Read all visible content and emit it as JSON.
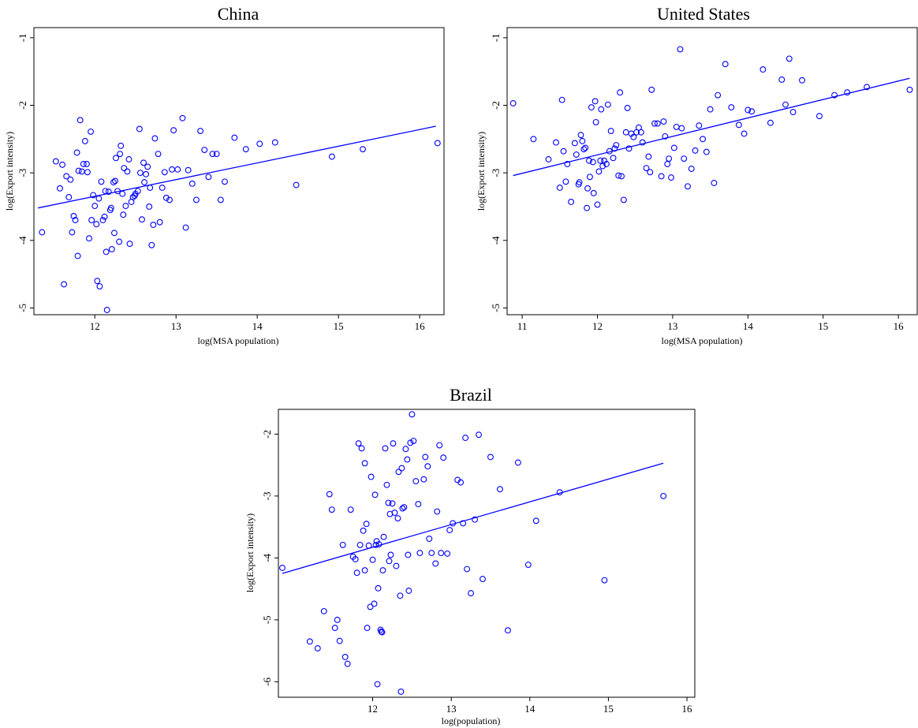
{
  "chart_data": [
    {
      "type": "scatter",
      "title": "China",
      "xlabel": "log(MSA population)",
      "ylabel": "log(Export intensity)",
      "xlim": [
        11.25,
        16.3
      ],
      "ylim": [
        -5.1,
        -0.85
      ],
      "xticks": [
        12,
        13,
        14,
        15,
        16
      ],
      "yticks": [
        -1,
        -2,
        -3,
        -4,
        -5
      ],
      "color": "#0000ff",
      "fit_line": [
        [
          11.3,
          -3.52
        ],
        [
          16.2,
          -2.31
        ]
      ],
      "points": [
        [
          11.35,
          -3.88
        ],
        [
          11.52,
          -2.83
        ],
        [
          11.57,
          -3.23
        ],
        [
          11.6,
          -2.88
        ],
        [
          11.62,
          -4.65
        ],
        [
          11.65,
          -3.05
        ],
        [
          11.68,
          -3.36
        ],
        [
          11.7,
          -3.1
        ],
        [
          11.72,
          -3.88
        ],
        [
          11.74,
          -3.64
        ],
        [
          11.76,
          -3.7
        ],
        [
          11.78,
          -2.7
        ],
        [
          11.79,
          -4.23
        ],
        [
          11.8,
          -2.97
        ],
        [
          11.82,
          -2.22
        ],
        [
          11.84,
          -2.98
        ],
        [
          11.86,
          -2.87
        ],
        [
          11.88,
          -2.53
        ],
        [
          11.9,
          -2.87
        ],
        [
          11.91,
          -2.99
        ],
        [
          11.93,
          -3.97
        ],
        [
          11.95,
          -2.39
        ],
        [
          11.96,
          -3.7
        ],
        [
          11.98,
          -3.33
        ],
        [
          12.0,
          -3.49
        ],
        [
          12.02,
          -3.76
        ],
        [
          12.03,
          -4.6
        ],
        [
          12.05,
          -3.38
        ],
        [
          12.06,
          -4.68
        ],
        [
          12.08,
          -3.13
        ],
        [
          12.1,
          -3.7
        ],
        [
          12.12,
          -3.65
        ],
        [
          12.13,
          -3.27
        ],
        [
          12.14,
          -4.17
        ],
        [
          12.15,
          -5.03
        ],
        [
          12.17,
          -3.28
        ],
        [
          12.19,
          -3.55
        ],
        [
          12.2,
          -3.52
        ],
        [
          12.21,
          -4.13
        ],
        [
          12.23,
          -3.14
        ],
        [
          12.24,
          -3.89
        ],
        [
          12.25,
          -3.12
        ],
        [
          12.26,
          -2.78
        ],
        [
          12.28,
          -3.27
        ],
        [
          12.3,
          -4.02
        ],
        [
          12.31,
          -2.72
        ],
        [
          12.32,
          -2.6
        ],
        [
          12.34,
          -3.31
        ],
        [
          12.35,
          -3.62
        ],
        [
          12.36,
          -2.93
        ],
        [
          12.38,
          -3.49
        ],
        [
          12.4,
          -2.98
        ],
        [
          12.42,
          -2.8
        ],
        [
          12.43,
          -4.05
        ],
        [
          12.45,
          -3.43
        ],
        [
          12.47,
          -3.36
        ],
        [
          12.49,
          -3.34
        ],
        [
          12.5,
          -3.31
        ],
        [
          12.53,
          -3.27
        ],
        [
          12.55,
          -2.35
        ],
        [
          12.56,
          -3.0
        ],
        [
          12.58,
          -3.69
        ],
        [
          12.6,
          -2.85
        ],
        [
          12.61,
          -3.14
        ],
        [
          12.63,
          -3.02
        ],
        [
          12.65,
          -2.91
        ],
        [
          12.67,
          -3.5
        ],
        [
          12.68,
          -3.22
        ],
        [
          12.7,
          -4.07
        ],
        [
          12.72,
          -3.77
        ],
        [
          12.74,
          -2.49
        ],
        [
          12.78,
          -2.72
        ],
        [
          12.8,
          -3.73
        ],
        [
          12.83,
          -3.22
        ],
        [
          12.86,
          -2.99
        ],
        [
          12.88,
          -3.37
        ],
        [
          12.92,
          -3.4
        ],
        [
          12.95,
          -2.95
        ],
        [
          12.97,
          -2.37
        ],
        [
          13.02,
          -2.95
        ],
        [
          13.08,
          -2.19
        ],
        [
          13.12,
          -3.81
        ],
        [
          13.15,
          -2.96
        ],
        [
          13.2,
          -3.16
        ],
        [
          13.25,
          -3.4
        ],
        [
          13.3,
          -2.38
        ],
        [
          13.35,
          -2.66
        ],
        [
          13.4,
          -3.06
        ],
        [
          13.45,
          -2.72
        ],
        [
          13.5,
          -2.72
        ],
        [
          13.55,
          -3.4
        ],
        [
          13.6,
          -3.13
        ],
        [
          13.72,
          -2.48
        ],
        [
          13.86,
          -2.65
        ],
        [
          14.03,
          -2.57
        ],
        [
          14.22,
          -2.55
        ],
        [
          14.48,
          -3.18
        ],
        [
          14.92,
          -2.76
        ],
        [
          15.3,
          -2.65
        ],
        [
          16.22,
          -2.56
        ]
      ]
    },
    {
      "type": "scatter",
      "title": "United States",
      "xlabel": "log(MSA population)",
      "ylabel": "log(Export intensity)",
      "xlim": [
        10.8,
        16.25
      ],
      "ylim": [
        -5.1,
        -0.85
      ],
      "xticks": [
        11,
        12,
        13,
        14,
        15,
        16
      ],
      "yticks": [
        -1,
        -2,
        -3,
        -4,
        -5
      ],
      "color": "#0000ff",
      "fit_line": [
        [
          10.88,
          -3.04
        ],
        [
          16.15,
          -1.6
        ]
      ],
      "points": [
        [
          10.88,
          -1.97
        ],
        [
          11.15,
          -2.5
        ],
        [
          11.35,
          -2.8
        ],
        [
          11.45,
          -2.55
        ],
        [
          11.5,
          -3.22
        ],
        [
          11.53,
          -1.92
        ],
        [
          11.55,
          -2.68
        ],
        [
          11.58,
          -3.13
        ],
        [
          11.6,
          -2.87
        ],
        [
          11.65,
          -3.43
        ],
        [
          11.7,
          -2.56
        ],
        [
          11.72,
          -2.73
        ],
        [
          11.75,
          -3.17
        ],
        [
          11.76,
          -3.14
        ],
        [
          11.78,
          -2.44
        ],
        [
          11.8,
          -2.53
        ],
        [
          11.82,
          -2.65
        ],
        [
          11.84,
          -2.63
        ],
        [
          11.86,
          -3.52
        ],
        [
          11.87,
          -3.23
        ],
        [
          11.89,
          -2.82
        ],
        [
          11.9,
          -3.06
        ],
        [
          11.92,
          -2.03
        ],
        [
          11.94,
          -2.84
        ],
        [
          11.95,
          -3.3
        ],
        [
          11.97,
          -1.94
        ],
        [
          11.98,
          -2.25
        ],
        [
          12.0,
          -3.47
        ],
        [
          12.02,
          -2.98
        ],
        [
          12.04,
          -2.82
        ],
        [
          12.05,
          -2.06
        ],
        [
          12.07,
          -2.9
        ],
        [
          12.09,
          -2.82
        ],
        [
          12.12,
          -2.87
        ],
        [
          12.14,
          -1.99
        ],
        [
          12.16,
          -2.68
        ],
        [
          12.18,
          -2.38
        ],
        [
          12.21,
          -2.78
        ],
        [
          12.23,
          -2.64
        ],
        [
          12.25,
          -2.59
        ],
        [
          12.28,
          -3.04
        ],
        [
          12.3,
          -1.81
        ],
        [
          12.32,
          -3.05
        ],
        [
          12.35,
          -3.4
        ],
        [
          12.38,
          -2.4
        ],
        [
          12.4,
          -2.04
        ],
        [
          12.42,
          -2.64
        ],
        [
          12.45,
          -2.42
        ],
        [
          12.48,
          -2.47
        ],
        [
          12.52,
          -2.4
        ],
        [
          12.55,
          -2.33
        ],
        [
          12.58,
          -2.4
        ],
        [
          12.6,
          -2.55
        ],
        [
          12.65,
          -2.93
        ],
        [
          12.68,
          -2.76
        ],
        [
          12.7,
          -2.99
        ],
        [
          12.72,
          -1.77
        ],
        [
          12.76,
          -2.27
        ],
        [
          12.8,
          -2.27
        ],
        [
          12.85,
          -3.05
        ],
        [
          12.88,
          -2.24
        ],
        [
          12.9,
          -2.46
        ],
        [
          12.93,
          -2.87
        ],
        [
          12.95,
          -2.79
        ],
        [
          12.98,
          -3.07
        ],
        [
          13.02,
          -2.63
        ],
        [
          13.05,
          -2.32
        ],
        [
          13.1,
          -1.17
        ],
        [
          13.12,
          -2.34
        ],
        [
          13.15,
          -2.79
        ],
        [
          13.2,
          -3.2
        ],
        [
          13.25,
          -2.94
        ],
        [
          13.3,
          -2.67
        ],
        [
          13.35,
          -2.3
        ],
        [
          13.4,
          -2.5
        ],
        [
          13.45,
          -2.69
        ],
        [
          13.5,
          -2.06
        ],
        [
          13.55,
          -3.15
        ],
        [
          13.6,
          -1.85
        ],
        [
          13.7,
          -1.39
        ],
        [
          13.78,
          -2.03
        ],
        [
          13.88,
          -2.29
        ],
        [
          13.95,
          -2.42
        ],
        [
          14.0,
          -2.07
        ],
        [
          14.05,
          -2.09
        ],
        [
          14.2,
          -1.47
        ],
        [
          14.3,
          -2.26
        ],
        [
          14.45,
          -1.62
        ],
        [
          14.5,
          -1.99
        ],
        [
          14.55,
          -1.31
        ],
        [
          14.6,
          -2.1
        ],
        [
          14.72,
          -1.63
        ],
        [
          14.95,
          -2.16
        ],
        [
          15.15,
          -1.85
        ],
        [
          15.32,
          -1.81
        ],
        [
          15.58,
          -1.73
        ],
        [
          16.15,
          -1.77
        ]
      ]
    },
    {
      "type": "scatter",
      "title": "Brazil",
      "xlabel": "log(population)",
      "ylabel": "log(Export intensity)",
      "xlim": [
        10.8,
        16.1
      ],
      "ylim": [
        -6.25,
        -1.6
      ],
      "xticks": [
        12,
        13,
        14,
        15,
        16
      ],
      "yticks": [
        -2,
        -3,
        -4,
        -5,
        -6
      ],
      "color": "#0000ff",
      "fit_line": [
        [
          10.85,
          -4.25
        ],
        [
          15.7,
          -2.47
        ]
      ],
      "points": [
        [
          10.85,
          -4.16
        ],
        [
          11.2,
          -5.35
        ],
        [
          11.3,
          -5.46
        ],
        [
          11.38,
          -4.86
        ],
        [
          11.45,
          -2.97
        ],
        [
          11.48,
          -3.22
        ],
        [
          11.52,
          -5.13
        ],
        [
          11.55,
          -5.0
        ],
        [
          11.58,
          -5.34
        ],
        [
          11.62,
          -3.79
        ],
        [
          11.65,
          -5.6
        ],
        [
          11.68,
          -5.71
        ],
        [
          11.72,
          -3.22
        ],
        [
          11.75,
          -3.98
        ],
        [
          11.78,
          -4.02
        ],
        [
          11.8,
          -4.24
        ],
        [
          11.82,
          -2.15
        ],
        [
          11.84,
          -3.79
        ],
        [
          11.86,
          -2.23
        ],
        [
          11.88,
          -3.56
        ],
        [
          11.9,
          -4.2
        ],
        [
          11.9,
          -2.47
        ],
        [
          11.92,
          -3.45
        ],
        [
          11.93,
          -5.13
        ],
        [
          11.95,
          -3.8
        ],
        [
          11.97,
          -4.79
        ],
        [
          11.98,
          -2.69
        ],
        [
          12.0,
          -4.03
        ],
        [
          12.02,
          -4.74
        ],
        [
          12.03,
          -2.98
        ],
        [
          12.04,
          -3.79
        ],
        [
          12.05,
          -3.73
        ],
        [
          12.06,
          -6.04
        ],
        [
          12.07,
          -4.49
        ],
        [
          12.08,
          -3.78
        ],
        [
          12.1,
          -5.16
        ],
        [
          12.11,
          -5.19
        ],
        [
          12.12,
          -5.2
        ],
        [
          12.13,
          -4.2
        ],
        [
          12.14,
          -3.66
        ],
        [
          12.16,
          -2.23
        ],
        [
          12.18,
          -2.82
        ],
        [
          12.2,
          -3.11
        ],
        [
          12.21,
          -4.05
        ],
        [
          12.22,
          -3.29
        ],
        [
          12.23,
          -3.95
        ],
        [
          12.25,
          -3.12
        ],
        [
          12.26,
          -2.15
        ],
        [
          12.28,
          -3.27
        ],
        [
          12.3,
          -4.13
        ],
        [
          12.32,
          -3.36
        ],
        [
          12.33,
          -2.61
        ],
        [
          12.35,
          -4.61
        ],
        [
          12.36,
          -6.16
        ],
        [
          12.37,
          -2.55
        ],
        [
          12.38,
          -3.2
        ],
        [
          12.4,
          -3.18
        ],
        [
          12.42,
          -2.24
        ],
        [
          12.44,
          -2.41
        ],
        [
          12.45,
          -3.95
        ],
        [
          12.46,
          -4.53
        ],
        [
          12.48,
          -2.14
        ],
        [
          12.5,
          -1.68
        ],
        [
          12.52,
          -2.11
        ],
        [
          12.55,
          -2.76
        ],
        [
          12.58,
          -3.13
        ],
        [
          12.6,
          -3.92
        ],
        [
          12.65,
          -2.73
        ],
        [
          12.67,
          -2.37
        ],
        [
          12.7,
          -2.52
        ],
        [
          12.72,
          -3.69
        ],
        [
          12.75,
          -3.92
        ],
        [
          12.8,
          -4.09
        ],
        [
          12.82,
          -3.25
        ],
        [
          12.85,
          -2.18
        ],
        [
          12.87,
          -3.92
        ],
        [
          12.9,
          -2.38
        ],
        [
          12.95,
          -3.93
        ],
        [
          12.98,
          -3.55
        ],
        [
          13.02,
          -3.44
        ],
        [
          13.08,
          -2.74
        ],
        [
          13.12,
          -2.78
        ],
        [
          13.15,
          -3.44
        ],
        [
          13.18,
          -2.06
        ],
        [
          13.2,
          -4.18
        ],
        [
          13.25,
          -4.57
        ],
        [
          13.3,
          -3.38
        ],
        [
          13.35,
          -2.01
        ],
        [
          13.4,
          -4.34
        ],
        [
          13.5,
          -2.37
        ],
        [
          13.62,
          -2.89
        ],
        [
          13.72,
          -5.17
        ],
        [
          13.85,
          -2.46
        ],
        [
          13.98,
          -4.11
        ],
        [
          14.08,
          -3.4
        ],
        [
          14.38,
          -2.94
        ],
        [
          14.95,
          -4.36
        ],
        [
          15.7,
          -3.0
        ]
      ]
    }
  ]
}
